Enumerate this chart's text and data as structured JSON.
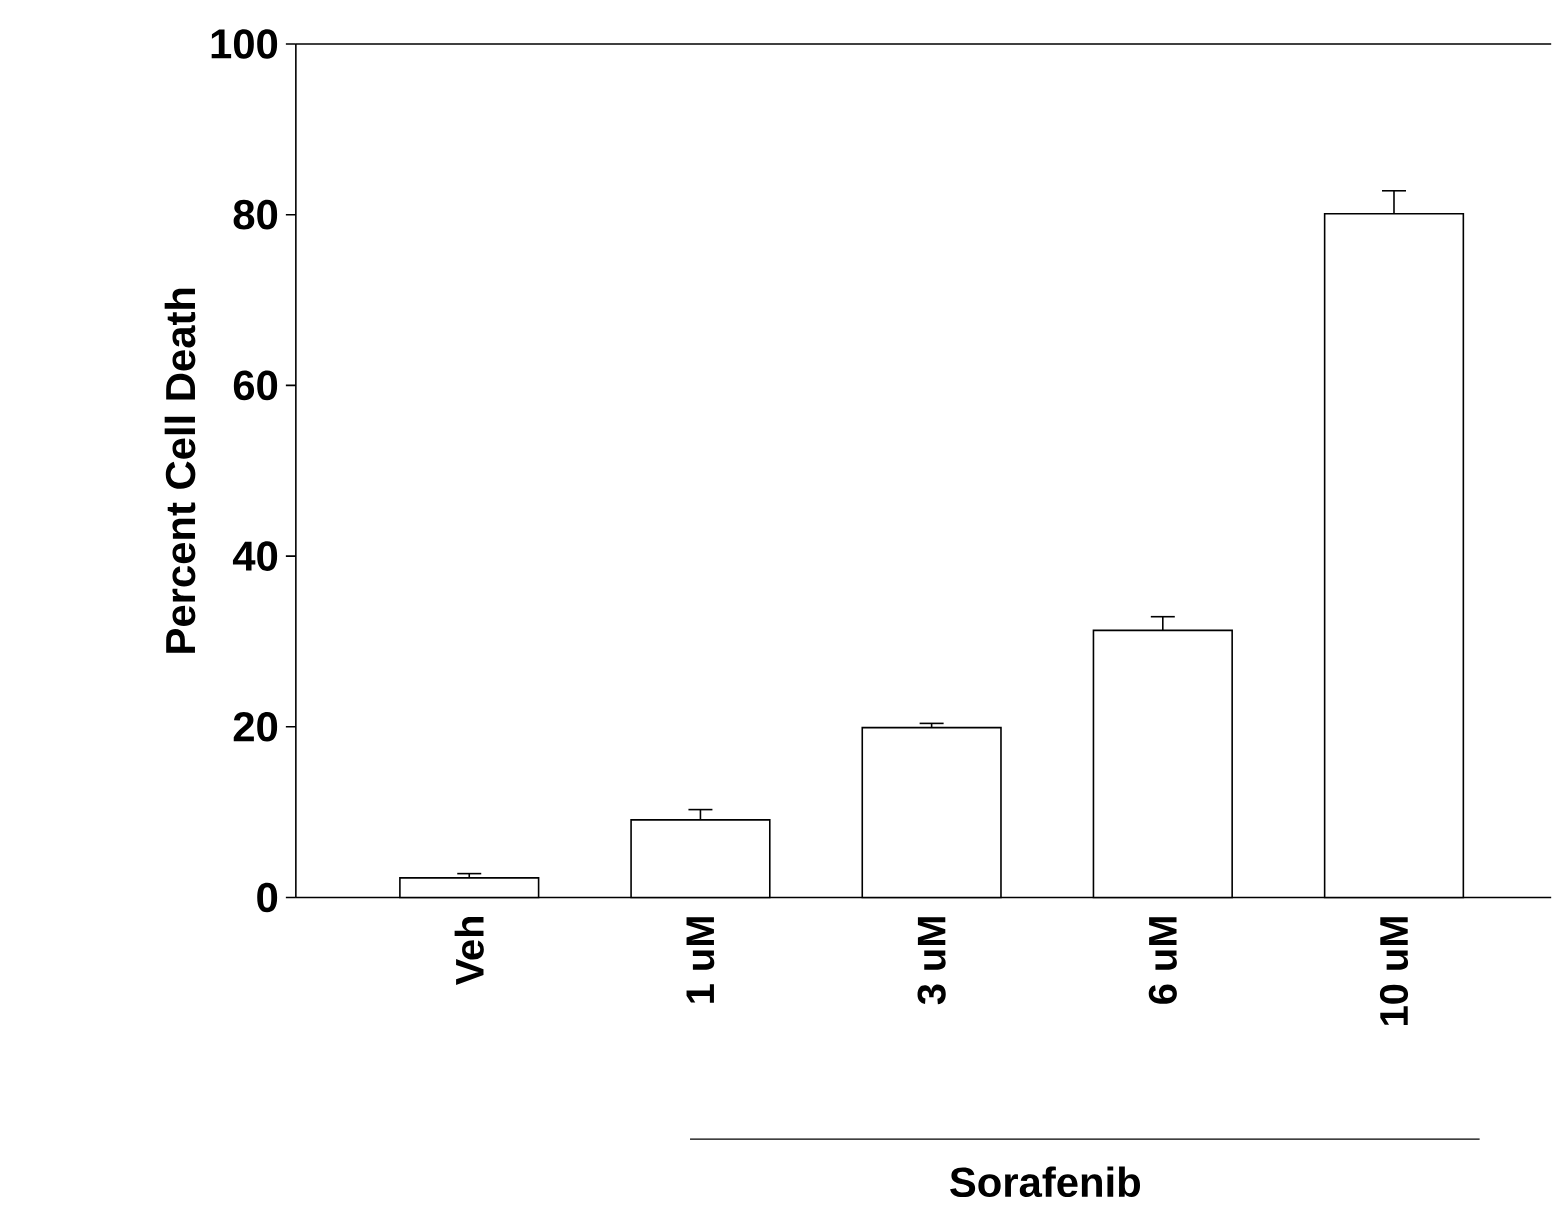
{
  "chart_data": {
    "type": "bar",
    "ylabel": "Percent Cell Death",
    "categories": [
      "Veh",
      "1 uM",
      "3 uM",
      "6 uM",
      "10 uM"
    ],
    "values": [
      2.3,
      9.1,
      19.9,
      31.3,
      80.1
    ],
    "errors": [
      0.5,
      1.2,
      0.5,
      1.6,
      2.7
    ],
    "color": "#ffffff",
    "ylim": [
      0,
      100
    ],
    "yticks": [
      0,
      20,
      40,
      60,
      80,
      100
    ],
    "annotations": [
      "Sorafenib"
    ]
  }
}
